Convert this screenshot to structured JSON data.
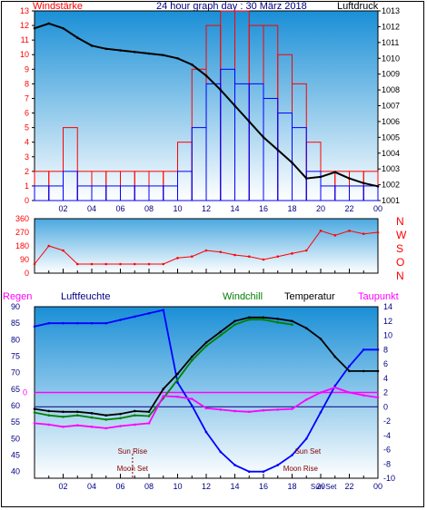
{
  "colors": {
    "red": "#ff0000",
    "blue": "#0000ff",
    "black": "#000000",
    "green": "#008000",
    "magenta": "#ff00ff",
    "navy": "#000080",
    "maroon": "#800000",
    "bg_top": "#1a8fd6",
    "bg_bottom": "#ffffff"
  },
  "top_header": {
    "left": "Windstärke",
    "title": "24 hour graph day : 30 März 2018",
    "right": "Luftdruck"
  },
  "mid_header": {
    "regen": "Regen",
    "luftfeuchte": "Luftfeuchte",
    "windchill": "Windchill",
    "temperatur": "Temperatur",
    "taupunkt": "Taupunkt"
  },
  "compass": [
    "N",
    "W",
    "S",
    "O",
    "N"
  ],
  "time_ticks": [
    "02",
    "04",
    "06",
    "08",
    "10",
    "12",
    "14",
    "16",
    "18",
    "20",
    "22",
    "00"
  ],
  "astro": {
    "sun_rise": "Sun Rise",
    "moon_set": "Moon Set",
    "sun_set": "Sun Set",
    "moon_rise": "Moon Rise",
    "sun_set_axis": "Sun Set"
  },
  "chart_data": [
    {
      "type": "line",
      "name": "wind_pressure",
      "title": "24 hour graph day : 30 März 2018",
      "x_range_hours": [
        0,
        24
      ],
      "xticks": [
        "02",
        "04",
        "06",
        "08",
        "10",
        "12",
        "14",
        "16",
        "18",
        "20",
        "22",
        "00"
      ],
      "left_axis": {
        "label": "Windstärke",
        "range": [
          0,
          13
        ],
        "ticks": [
          0,
          1,
          2,
          3,
          4,
          5,
          6,
          7,
          8,
          9,
          10,
          11,
          12,
          13
        ]
      },
      "right_axis": {
        "label": "Luftdruck",
        "range": [
          1001,
          1013
        ],
        "ticks": [
          1001,
          1002,
          1003,
          1004,
          1005,
          1006,
          1007,
          1008,
          1009,
          1010,
          1011,
          1012,
          1013
        ]
      },
      "series": [
        {
          "name": "Luftdruck",
          "color": "black",
          "axis": "right",
          "x": [
            0,
            1,
            2,
            3,
            4,
            5,
            6,
            7,
            8,
            9,
            10,
            11,
            12,
            13,
            14,
            15,
            16,
            17,
            18,
            19,
            20,
            21,
            22,
            23,
            24
          ],
          "y": [
            1011.9,
            1012.2,
            1011.9,
            1011.3,
            1010.8,
            1010.6,
            1010.5,
            1010.4,
            1010.3,
            1010.2,
            1010.0,
            1009.6,
            1008.9,
            1008.0,
            1007.0,
            1006.0,
            1005.0,
            1004.2,
            1003.4,
            1002.4,
            1002.5,
            1002.8,
            1002.4,
            1002.1,
            1001.9
          ]
        },
        {
          "name": "Windböen",
          "color": "red",
          "axis": "left",
          "x": [
            0,
            1,
            2,
            3,
            4,
            5,
            6,
            7,
            8,
            9,
            10,
            11,
            12,
            13,
            14,
            15,
            16,
            17,
            18,
            19,
            20,
            21,
            22,
            23,
            24
          ],
          "y": [
            2,
            2,
            5,
            2,
            2,
            2,
            2,
            2,
            2,
            2,
            4,
            9,
            12,
            13,
            13,
            12,
            12,
            10,
            8,
            4,
            2,
            2,
            2,
            2,
            2
          ]
        },
        {
          "name": "Windstärke",
          "color": "blue",
          "axis": "left",
          "x": [
            0,
            1,
            2,
            3,
            4,
            5,
            6,
            7,
            8,
            9,
            10,
            11,
            12,
            13,
            14,
            15,
            16,
            17,
            18,
            19,
            20,
            21,
            22,
            23,
            24
          ],
          "y": [
            1,
            1,
            2,
            1,
            1,
            1,
            1,
            1,
            1,
            1,
            2,
            5,
            8,
            9,
            8,
            8,
            7,
            6,
            5,
            2,
            1,
            1,
            1,
            1,
            1
          ]
        }
      ]
    },
    {
      "type": "line",
      "name": "wind_direction",
      "x_range_hours": [
        0,
        24
      ],
      "left_axis": {
        "range": [
          0,
          360
        ],
        "ticks": [
          0,
          90,
          180,
          270,
          360
        ]
      },
      "right_labels": [
        "N",
        "W",
        "S",
        "O",
        "N"
      ],
      "series": [
        {
          "name": "Windrichtung",
          "color": "red",
          "x": [
            0,
            1,
            2,
            3,
            4,
            5,
            6,
            7,
            8,
            9,
            10,
            11,
            12,
            13,
            14,
            15,
            16,
            17,
            18,
            19,
            20,
            21,
            22,
            23,
            24
          ],
          "y": [
            60,
            180,
            150,
            60,
            60,
            60,
            60,
            60,
            60,
            60,
            100,
            110,
            150,
            140,
            120,
            110,
            90,
            110,
            130,
            150,
            280,
            250,
            280,
            260,
            270
          ]
        }
      ]
    },
    {
      "type": "line",
      "name": "temp_humidity",
      "x_range_hours": [
        0,
        24
      ],
      "left_axis": {
        "label": "Luftfeuchte",
        "range": [
          38,
          90
        ],
        "ticks": [
          40,
          45,
          50,
          55,
          60,
          65,
          70,
          75,
          80,
          85,
          90
        ]
      },
      "right_axis": {
        "label": "Temperatur",
        "range": [
          -10,
          14
        ],
        "ticks": [
          -10,
          -8,
          -6,
          -4,
          -2,
          0,
          2,
          4,
          6,
          8,
          10,
          12,
          14
        ]
      },
      "rain_axis": {
        "label": "Regen",
        "ticks": [
          "0"
        ]
      },
      "series": [
        {
          "name": "Luftfeuchte",
          "color": "blue",
          "axis": "left",
          "x": [
            0,
            1,
            2,
            3,
            4,
            5,
            6,
            7,
            8,
            9,
            10,
            11,
            12,
            13,
            14,
            15,
            16,
            17,
            18,
            19,
            20,
            21,
            22,
            23,
            24
          ],
          "y": [
            84,
            85,
            85,
            85,
            85,
            85,
            86,
            87,
            88,
            89,
            67,
            60,
            52,
            46,
            42,
            40,
            40,
            42,
            45,
            50,
            58,
            66,
            72,
            77,
            77
          ]
        },
        {
          "name": "Temperatur",
          "color": "black",
          "axis": "right",
          "x": [
            0,
            1,
            2,
            3,
            4,
            5,
            6,
            7,
            8,
            9,
            10,
            11,
            12,
            13,
            14,
            15,
            16,
            17,
            18,
            19,
            20,
            21,
            22,
            23,
            24
          ],
          "y": [
            -0.3,
            -0.6,
            -0.7,
            -0.7,
            -0.9,
            -1.2,
            -1.0,
            -0.6,
            -0.7,
            2.5,
            4.6,
            7.0,
            9.0,
            10.5,
            12.0,
            12.5,
            12.5,
            12.3,
            12.0,
            11.0,
            9.5,
            7.0,
            5.0,
            5.0,
            5.0
          ]
        },
        {
          "name": "Windchill",
          "color": "green",
          "axis": "right",
          "x": [
            0,
            1,
            2,
            3,
            4,
            5,
            6,
            7,
            8,
            9,
            10,
            11,
            12,
            13,
            14,
            15,
            16,
            17,
            18
          ],
          "y": [
            -0.8,
            -1.2,
            -1.4,
            -1.2,
            -1.5,
            -1.8,
            -1.6,
            -1.2,
            -1.3,
            1.2,
            3.8,
            6.5,
            8.5,
            10.0,
            11.5,
            12.2,
            12.2,
            11.8,
            11.5
          ]
        },
        {
          "name": "Taupunkt",
          "color": "magenta",
          "axis": "right",
          "x": [
            0,
            1,
            2,
            3,
            4,
            5,
            6,
            7,
            8,
            9,
            10,
            11,
            12,
            13,
            14,
            15,
            16,
            17,
            18,
            19,
            20,
            21,
            22,
            23,
            24
          ],
          "y": [
            -2.3,
            -2.5,
            -2.8,
            -2.6,
            -2.8,
            -3.0,
            -2.7,
            -2.5,
            -2.3,
            1.5,
            1.4,
            1.1,
            -0.2,
            -0.4,
            -0.6,
            -0.7,
            -0.5,
            -0.4,
            -0.3,
            1.0,
            2.0,
            2.7,
            2.0,
            1.6,
            1.3
          ]
        }
      ]
    }
  ]
}
